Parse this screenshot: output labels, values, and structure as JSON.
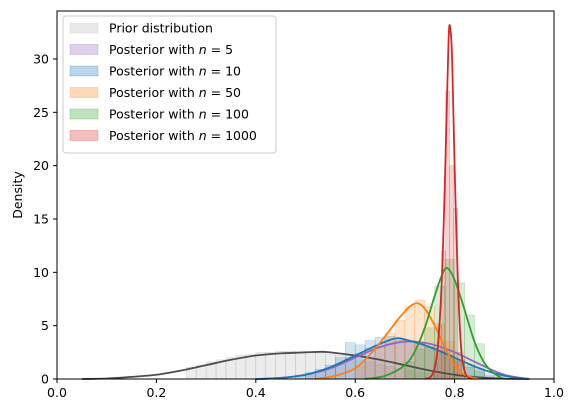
{
  "chart_data": {
    "type": "area",
    "title": "",
    "xlabel": "",
    "ylabel": "Density",
    "xlim": [
      0.0,
      1.0
    ],
    "ylim": [
      0,
      34.5
    ],
    "x_ticks": [
      0.0,
      0.2,
      0.4,
      0.6,
      0.8,
      1.0
    ],
    "x_tick_labels": [
      "0.0",
      "0.2",
      "0.4",
      "0.6",
      "0.8",
      "1.0"
    ],
    "y_ticks": [
      0,
      5,
      10,
      15,
      20,
      25,
      30
    ],
    "y_tick_labels": [
      "0",
      "5",
      "10",
      "15",
      "20",
      "25",
      "30"
    ],
    "grid": false,
    "legend_position": "top-left",
    "legend": [
      {
        "label": "Prior distribution",
        "sub_n": "",
        "color": "#bfbfbf"
      },
      {
        "label": "Posterior with ",
        "sub_n": "5",
        "color": "#9467bd"
      },
      {
        "label": "Posterior with ",
        "sub_n": "10",
        "color": "#1f77b4"
      },
      {
        "label": "Posterior with ",
        "sub_n": "50",
        "color": "#ff7f0e"
      },
      {
        "label": "Posterior with ",
        "sub_n": "100",
        "color": "#2ca02c"
      },
      {
        "label": "Posterior with ",
        "sub_n": "1000",
        "color": "#d62728"
      }
    ],
    "series": [
      {
        "name": "Prior distribution",
        "color": "#4d4d4d",
        "hist_color": "#bfbfbf",
        "x": [
          0.05,
          0.1,
          0.15,
          0.2,
          0.25,
          0.3,
          0.35,
          0.4,
          0.45,
          0.5,
          0.53,
          0.55,
          0.6,
          0.65,
          0.7,
          0.75,
          0.8,
          0.85,
          0.9,
          0.95
        ],
        "y": [
          0.0,
          0.05,
          0.2,
          0.4,
          0.8,
          1.3,
          1.8,
          2.2,
          2.4,
          2.5,
          2.55,
          2.5,
          2.2,
          1.8,
          1.3,
          0.8,
          0.4,
          0.15,
          0.03,
          0.0
        ],
        "bins": [
          0.26,
          0.28,
          0.3,
          0.32,
          0.34,
          0.36,
          0.38,
          0.4,
          0.42,
          0.44,
          0.46,
          0.48,
          0.5,
          0.52,
          0.54,
          0.56,
          0.58,
          0.6,
          0.62,
          0.64,
          0.66,
          0.68,
          0.7,
          0.72,
          0.74,
          0.76,
          0.78,
          0.8
        ],
        "hist": [
          1.1,
          1.3,
          1.6,
          1.8,
          2.0,
          2.2,
          2.3,
          2.5,
          2.5,
          2.6,
          2.6,
          2.5,
          2.5,
          2.4,
          2.3,
          2.2,
          2.0,
          1.8,
          1.6,
          1.4,
          1.2,
          1.0,
          0.8,
          0.6,
          0.5,
          0.3,
          0.2
        ]
      },
      {
        "name": "Posterior with n = 5",
        "color": "#9467bd",
        "hist_color": "#9467bd",
        "x": [
          0.4,
          0.45,
          0.5,
          0.55,
          0.6,
          0.65,
          0.7,
          0.75,
          0.8,
          0.85,
          0.9,
          0.95
        ],
        "y": [
          0.0,
          0.1,
          0.4,
          1.0,
          2.0,
          3.0,
          3.5,
          3.3,
          2.5,
          1.4,
          0.4,
          0.0
        ],
        "bins": [
          0.5,
          0.52,
          0.54,
          0.56,
          0.58,
          0.6,
          0.62,
          0.64,
          0.66,
          0.68,
          0.7,
          0.72,
          0.74,
          0.76,
          0.78,
          0.8,
          0.82,
          0.84,
          0.86,
          0.88,
          0.9
        ],
        "hist": [
          0.4,
          0.7,
          1.0,
          1.4,
          1.9,
          2.4,
          2.9,
          3.2,
          3.5,
          3.6,
          3.5,
          3.3,
          3.0,
          2.7,
          2.3,
          1.8,
          1.3,
          0.9,
          0.5,
          0.2
        ]
      },
      {
        "name": "Posterior with n = 10",
        "color": "#1f77b4",
        "hist_color": "#1f77b4",
        "x": [
          0.4,
          0.45,
          0.5,
          0.55,
          0.6,
          0.65,
          0.68,
          0.7,
          0.75,
          0.8,
          0.85,
          0.9,
          0.95
        ],
        "y": [
          0.0,
          0.1,
          0.4,
          1.1,
          2.2,
          3.3,
          3.8,
          3.7,
          3.0,
          2.0,
          1.0,
          0.3,
          0.0
        ],
        "bins": [
          0.48,
          0.5,
          0.52,
          0.54,
          0.56,
          0.58,
          0.6,
          0.62,
          0.64,
          0.66,
          0.68,
          0.7,
          0.72,
          0.74,
          0.76,
          0.78,
          0.8,
          0.82,
          0.84,
          0.86,
          0.88
        ],
        "hist": [
          0.3,
          0.6,
          0.9,
          1.3,
          2.0,
          3.4,
          3.2,
          3.6,
          3.9,
          4.0,
          3.8,
          3.6,
          3.3,
          3.0,
          2.6,
          2.1,
          1.6,
          1.1,
          0.7,
          0.3
        ]
      },
      {
        "name": "Posterior with n = 50",
        "color": "#ff7f0e",
        "hist_color": "#ff7f0e",
        "x": [
          0.52,
          0.56,
          0.6,
          0.63,
          0.66,
          0.69,
          0.71,
          0.725,
          0.74,
          0.76,
          0.78,
          0.8,
          0.82,
          0.85
        ],
        "y": [
          0.0,
          0.3,
          1.0,
          2.3,
          4.0,
          5.8,
          6.8,
          7.1,
          6.6,
          5.0,
          3.0,
          1.3,
          0.4,
          0.0
        ],
        "bins": [
          0.6,
          0.62,
          0.64,
          0.66,
          0.68,
          0.7,
          0.72,
          0.74,
          0.76,
          0.78,
          0.8,
          0.82
        ],
        "hist": [
          1.2,
          2.0,
          3.1,
          4.3,
          5.5,
          6.8,
          7.4,
          6.8,
          5.2,
          3.5,
          1.8
        ]
      },
      {
        "name": "Posterior with n = 100",
        "color": "#2ca02c",
        "hist_color": "#2ca02c",
        "x": [
          0.62,
          0.66,
          0.7,
          0.72,
          0.74,
          0.76,
          0.775,
          0.785,
          0.8,
          0.82,
          0.84,
          0.86,
          0.88,
          0.9
        ],
        "y": [
          0.0,
          0.3,
          1.3,
          2.6,
          4.8,
          7.8,
          9.8,
          10.4,
          9.3,
          6.5,
          3.5,
          1.5,
          0.5,
          0.0
        ],
        "bins": [
          0.7,
          0.72,
          0.74,
          0.76,
          0.78,
          0.8,
          0.82,
          0.84,
          0.86
        ],
        "hist": [
          1.6,
          2.8,
          4.8,
          8.7,
          11.2,
          9.0,
          6.0,
          3.3
        ]
      },
      {
        "name": "Posterior with n = 1000",
        "color": "#d62728",
        "hist_color": "#d62728",
        "x": [
          0.74,
          0.755,
          0.765,
          0.773,
          0.779,
          0.784,
          0.788,
          0.791,
          0.795,
          0.8,
          0.806,
          0.813,
          0.822,
          0.835
        ],
        "y": [
          0.0,
          0.4,
          2.5,
          8.0,
          16.0,
          25.0,
          32.0,
          33.0,
          30.0,
          20.0,
          10.0,
          3.0,
          0.5,
          0.0
        ],
        "bins": [
          0.758,
          0.766,
          0.774,
          0.782,
          0.79,
          0.798,
          0.806,
          0.814
        ],
        "hist": [
          1.5,
          5.0,
          12.0,
          27.0,
          20.0,
          16.0,
          2.5
        ]
      }
    ]
  }
}
